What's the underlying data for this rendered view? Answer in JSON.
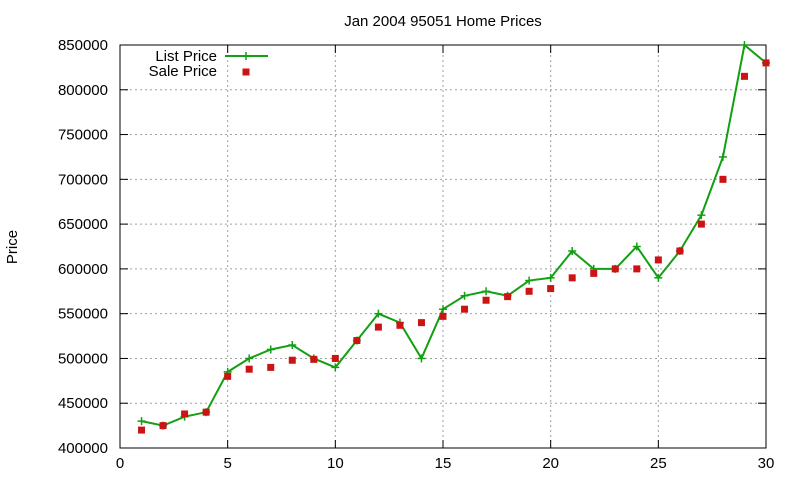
{
  "chart_data": {
    "type": "line",
    "title": "Jan 2004 95051 Home Prices",
    "xlabel": "",
    "ylabel": "Price",
    "xlim": [
      0,
      30
    ],
    "ylim": [
      400000,
      850000
    ],
    "x_ticks": [
      0,
      5,
      10,
      15,
      20,
      25,
      30
    ],
    "y_ticks": [
      400000,
      450000,
      500000,
      550000,
      600000,
      650000,
      700000,
      750000,
      800000,
      850000
    ],
    "grid": true,
    "legend_position": "top-left",
    "series": [
      {
        "name": "List Price",
        "style": "line-with-plus-markers",
        "color": "#12a012",
        "x": [
          1,
          2,
          3,
          4,
          5,
          6,
          7,
          8,
          9,
          10,
          11,
          12,
          13,
          14,
          15,
          16,
          17,
          18,
          19,
          20,
          21,
          22,
          23,
          24,
          25,
          26,
          27,
          28,
          29,
          30
        ],
        "values": [
          430000,
          425000,
          435000,
          440000,
          485000,
          500000,
          510000,
          515000,
          500000,
          490000,
          520000,
          550000,
          540000,
          500000,
          555000,
          570000,
          575000,
          570000,
          587000,
          590000,
          620000,
          600000,
          600000,
          625000,
          590000,
          620000,
          660000,
          725000,
          850000,
          830000
        ]
      },
      {
        "name": "Sale Price",
        "style": "square-markers",
        "color": "#cc1414",
        "x": [
          1,
          2,
          3,
          4,
          5,
          6,
          7,
          8,
          9,
          10,
          11,
          12,
          13,
          14,
          15,
          16,
          17,
          18,
          19,
          20,
          21,
          22,
          23,
          24,
          25,
          26,
          27,
          28,
          29,
          30
        ],
        "values": [
          420000,
          425000,
          438000,
          440000,
          480000,
          488000,
          490000,
          498000,
          499000,
          500000,
          520000,
          535000,
          537000,
          540000,
          547000,
          555000,
          565000,
          569000,
          575000,
          578000,
          590000,
          595000,
          600000,
          600000,
          610000,
          620000,
          650000,
          700000,
          815000,
          830000
        ]
      }
    ]
  }
}
